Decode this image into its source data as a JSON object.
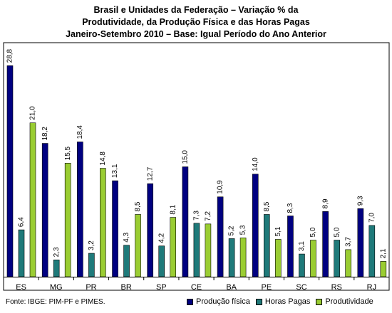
{
  "title_lines": [
    "Brasil e Unidades da Federação – Variação % da",
    "Produtividade, da Produção Física e das Horas Pagas",
    "Janeiro-Setembro 2010 – Base: Igual Período do Ano Anterior"
  ],
  "source": "Fonte: IBGE: PIM-PF e PIMES.",
  "chart_data": {
    "type": "bar",
    "categories": [
      "ES",
      "MG",
      "PR",
      "BR",
      "SP",
      "CE",
      "BA",
      "PE",
      "SC",
      "RS",
      "RJ"
    ],
    "series": [
      {
        "name": "Produção física",
        "color": "#000080",
        "values": [
          28.8,
          18.2,
          18.4,
          13.1,
          12.7,
          15.0,
          10.9,
          14.0,
          8.3,
          8.9,
          9.3
        ],
        "labels": [
          "28,8",
          "18,2",
          "18,4",
          "13,1",
          "12,7",
          "15,0",
          "10,9",
          "14,0",
          "8,3",
          "8,9",
          "9,3"
        ]
      },
      {
        "name": "Horas Pagas",
        "color": "#1F7A7A",
        "values": [
          6.4,
          2.3,
          3.2,
          4.3,
          4.2,
          7.3,
          5.2,
          8.5,
          3.1,
          5.0,
          7.0
        ],
        "labels": [
          "6,4",
          "2,3",
          "3,2",
          "4,3",
          "4,2",
          "7,3",
          "5,2",
          "8,5",
          "3,1",
          "5,0",
          "7,0"
        ]
      },
      {
        "name": "Produtividade",
        "color": "#9ACD32",
        "values": [
          21.0,
          15.5,
          14.8,
          8.5,
          8.1,
          7.2,
          5.3,
          5.1,
          5.0,
          3.7,
          2.1
        ],
        "labels": [
          "21,0",
          "15,5",
          "14,8",
          "8,5",
          "8,1",
          "7,2",
          "5,3",
          "5,1",
          "5,0",
          "3,7",
          "2,1"
        ]
      }
    ],
    "grid": false,
    "legend_position": "bottom-right"
  }
}
